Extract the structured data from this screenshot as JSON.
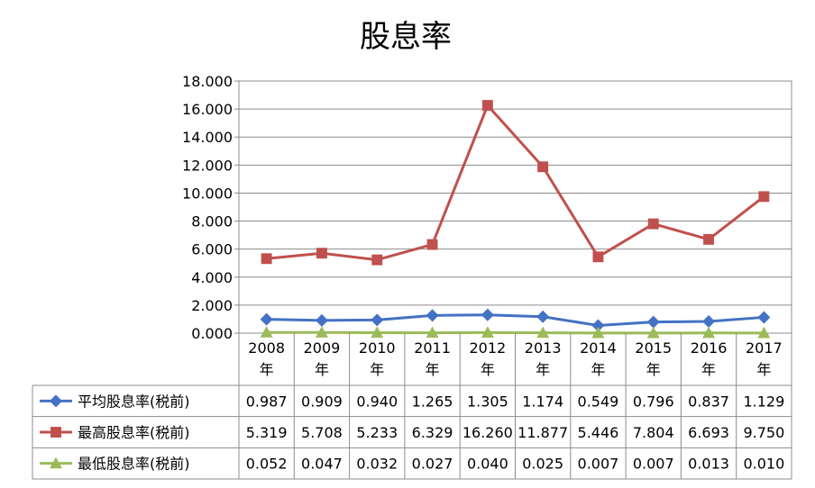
{
  "chart_data": {
    "type": "line",
    "title": "股息率",
    "categories": [
      [
        "2008",
        "年"
      ],
      [
        "2009",
        "年"
      ],
      [
        "2010",
        "年"
      ],
      [
        "2011",
        "年"
      ],
      [
        "2012",
        "年"
      ],
      [
        "2013",
        "年"
      ],
      [
        "2014",
        "年"
      ],
      [
        "2015",
        "年"
      ],
      [
        "2016",
        "年"
      ],
      [
        "2017",
        "年"
      ]
    ],
    "y_ticks": [
      "0.000",
      "2.000",
      "4.000",
      "6.000",
      "8.000",
      "10.000",
      "12.000",
      "14.000",
      "16.000",
      "18.000"
    ],
    "ylim": [
      0,
      18
    ],
    "grid": true,
    "legend_position": "bottom-table",
    "series": [
      {
        "name": "平均股息率(税前)",
        "color": "#4472C4",
        "marker": "diamond",
        "values": [
          0.987,
          0.909,
          0.94,
          1.265,
          1.305,
          1.174,
          0.549,
          0.796,
          0.837,
          1.129
        ],
        "labels": [
          "0.987",
          "0.909",
          "0.940",
          "1.265",
          "1.305",
          "1.174",
          "0.549",
          "0.796",
          "0.837",
          "1.129"
        ]
      },
      {
        "name": "最高股息率(税前)",
        "color": "#C0504D",
        "marker": "square",
        "values": [
          5.319,
          5.708,
          5.233,
          6.329,
          16.26,
          11.877,
          5.446,
          7.804,
          6.693,
          9.75
        ],
        "labels": [
          "5.319",
          "5.708",
          "5.233",
          "6.329",
          "16.260",
          "11.877",
          "5.446",
          "7.804",
          "6.693",
          "9.750"
        ]
      },
      {
        "name": "最低股息率(税前)",
        "color": "#9BBB59",
        "marker": "triangle",
        "values": [
          0.052,
          0.047,
          0.032,
          0.027,
          0.04,
          0.025,
          0.007,
          0.007,
          0.013,
          0.01
        ],
        "labels": [
          "0.052",
          "0.047",
          "0.032",
          "0.027",
          "0.040",
          "0.025",
          "0.007",
          "0.007",
          "0.013",
          "0.010"
        ]
      }
    ]
  }
}
